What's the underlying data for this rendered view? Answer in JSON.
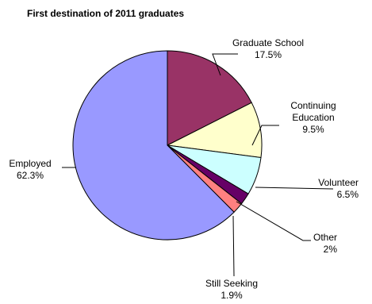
{
  "chart_data": {
    "type": "pie",
    "title": "First destination of 2011 graduates",
    "slices": [
      {
        "label": "Graduate School",
        "value": 17.5,
        "value_label": "17.5%",
        "color": "#993366"
      },
      {
        "label": "Continuing Education",
        "label_lines": [
          "Continuing",
          "Education"
        ],
        "value": 9.5,
        "value_label": "9.5%",
        "color": "#ffffcc"
      },
      {
        "label": "Volunteer",
        "value": 6.5,
        "value_label": "6.5%",
        "color": "#ccffff"
      },
      {
        "label": "Other",
        "value": 2.0,
        "value_label": "2%",
        "color": "#660066"
      },
      {
        "label": "Still Seeking",
        "value": 1.9,
        "value_label": "1.9%",
        "color": "#ff8080"
      },
      {
        "label": "Employed",
        "value": 62.3,
        "value_label": "62.3%",
        "color": "#9999ff"
      }
    ]
  }
}
